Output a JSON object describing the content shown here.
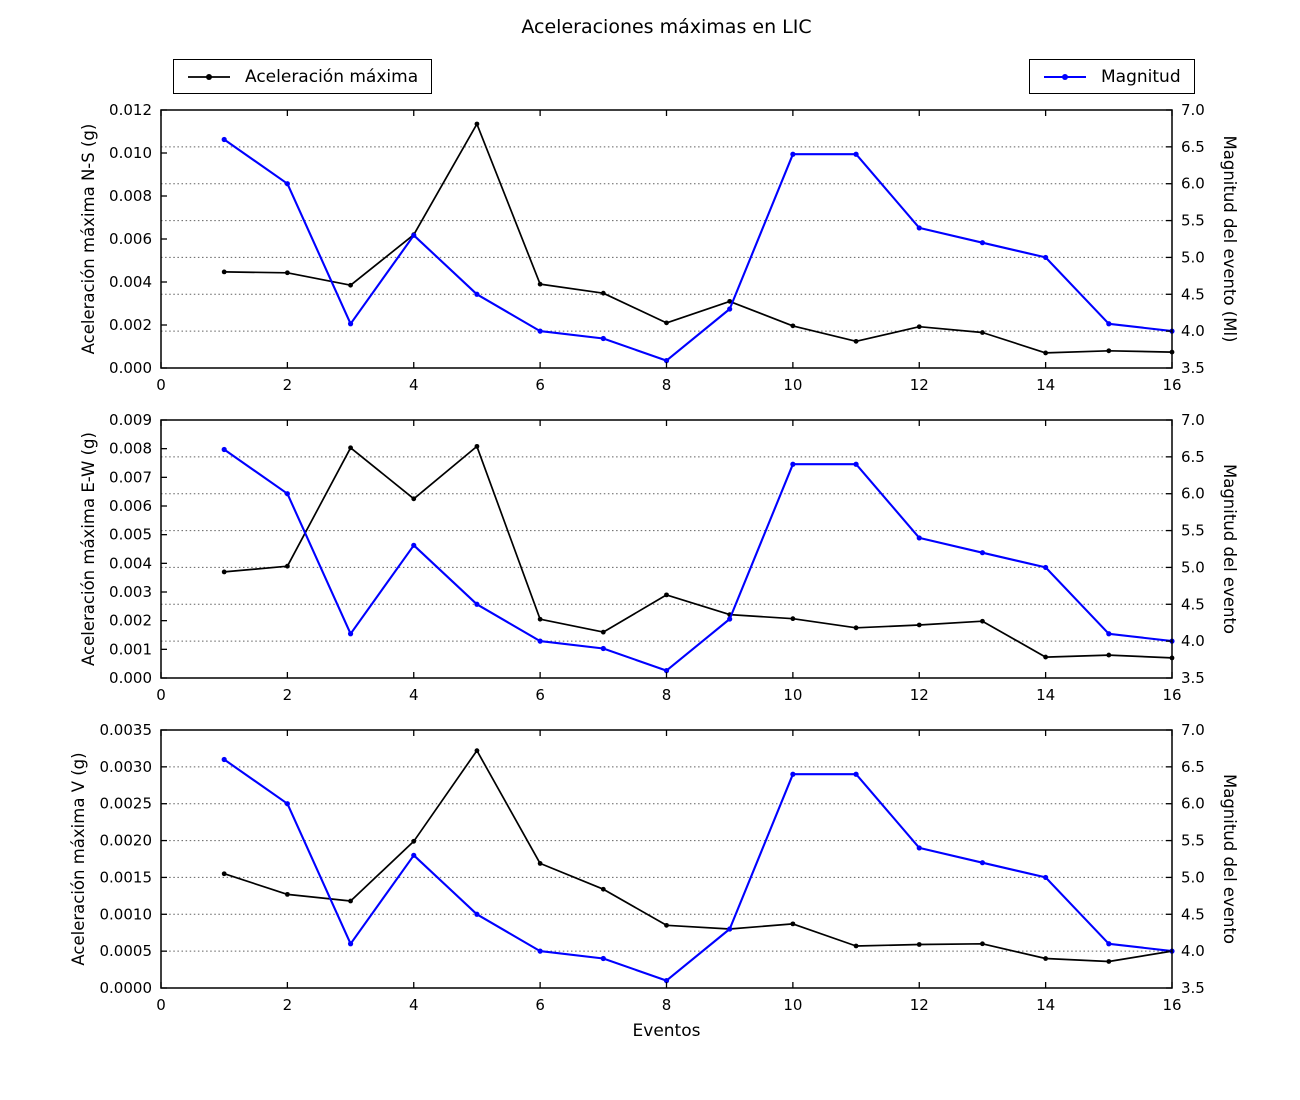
{
  "figure": {
    "title": "Aceleraciones máximas en LIC",
    "xlabel": "Eventos",
    "background_color": "#ffffff",
    "legends": [
      {
        "label": "Aceleración máxima",
        "color": "#000000"
      },
      {
        "label": "Magnitud",
        "color": "#0000ff"
      }
    ]
  },
  "chart_data": [
    {
      "type": "line",
      "subplot": "N-S",
      "x": [
        1,
        2,
        3,
        4,
        5,
        6,
        7,
        8,
        9,
        10,
        11,
        12,
        13,
        14,
        15,
        16
      ],
      "xlim": [
        0,
        16
      ],
      "xticks": [
        0,
        2,
        4,
        6,
        8,
        10,
        12,
        14,
        16
      ],
      "ylabel_left": "Aceleración máxima N-S (g)",
      "ylim_left": [
        0.0,
        0.012
      ],
      "yticks_left": [
        0.0,
        0.002,
        0.004,
        0.006,
        0.008,
        0.01,
        0.012
      ],
      "ytick_decimals_left": 3,
      "ylabel_right": "Magnitud del evento (Ml)",
      "ylim_right": [
        3.5,
        7.0
      ],
      "yticks_right": [
        3.5,
        4.0,
        4.5,
        5.0,
        5.5,
        6.0,
        6.5,
        7.0
      ],
      "grid_right_values": [
        4.0,
        4.5,
        5.0,
        5.5,
        6.0,
        6.5
      ],
      "grid_style": "dotted",
      "legend_position": "figure-top",
      "series": [
        {
          "name": "Aceleración máxima",
          "axis": "left",
          "color": "#000000",
          "values": [
            0.00447,
            0.00443,
            0.00385,
            0.0062,
            0.01135,
            0.0039,
            0.00348,
            0.0021,
            0.0031,
            0.00196,
            0.00124,
            0.00192,
            0.00165,
            0.0007,
            0.0008,
            0.00074
          ]
        },
        {
          "name": "Magnitud",
          "axis": "right",
          "color": "#0000ff",
          "values": [
            6.6,
            6.0,
            4.1,
            5.3,
            4.5,
            4.0,
            3.9,
            3.6,
            4.3,
            6.4,
            6.4,
            5.4,
            5.2,
            5.0,
            4.1,
            4.0
          ]
        }
      ]
    },
    {
      "type": "line",
      "subplot": "E-W",
      "x": [
        1,
        2,
        3,
        4,
        5,
        6,
        7,
        8,
        9,
        10,
        11,
        12,
        13,
        14,
        15,
        16
      ],
      "xlim": [
        0,
        16
      ],
      "xticks": [
        0,
        2,
        4,
        6,
        8,
        10,
        12,
        14,
        16
      ],
      "ylabel_left": "Aceleración máxima E-W (g)",
      "ylim_left": [
        0.0,
        0.009
      ],
      "yticks_left": [
        0.0,
        0.001,
        0.002,
        0.003,
        0.004,
        0.005,
        0.006,
        0.007,
        0.008,
        0.009
      ],
      "ytick_decimals_left": 3,
      "ylabel_right": "Magnitud del evento",
      "ylim_right": [
        3.5,
        7.0
      ],
      "yticks_right": [
        3.5,
        4.0,
        4.5,
        5.0,
        5.5,
        6.0,
        6.5,
        7.0
      ],
      "grid_right_values": [
        4.0,
        4.5,
        5.0,
        5.5,
        6.0,
        6.5
      ],
      "grid_style": "dotted",
      "series": [
        {
          "name": "Aceleración máxima",
          "axis": "left",
          "color": "#000000",
          "values": [
            0.0037,
            0.0039,
            0.00803,
            0.00625,
            0.00808,
            0.00205,
            0.0016,
            0.0029,
            0.00221,
            0.00207,
            0.00175,
            0.00185,
            0.00198,
            0.00073,
            0.0008,
            0.0007
          ]
        },
        {
          "name": "Magnitud",
          "axis": "right",
          "color": "#0000ff",
          "values": [
            6.6,
            6.0,
            4.1,
            5.3,
            4.5,
            4.0,
            3.9,
            3.6,
            4.3,
            6.4,
            6.4,
            5.4,
            5.2,
            5.0,
            4.1,
            4.0
          ]
        }
      ]
    },
    {
      "type": "line",
      "subplot": "V",
      "x": [
        1,
        2,
        3,
        4,
        5,
        6,
        7,
        8,
        9,
        10,
        11,
        12,
        13,
        14,
        15,
        16
      ],
      "xlim": [
        0,
        16
      ],
      "xticks": [
        0,
        2,
        4,
        6,
        8,
        10,
        12,
        14,
        16
      ],
      "ylabel_left": "Aceleración máxima V (g)",
      "ylim_left": [
        0.0,
        0.0035
      ],
      "yticks_left": [
        0.0,
        0.0005,
        0.001,
        0.0015,
        0.002,
        0.0025,
        0.003,
        0.0035
      ],
      "ytick_decimals_left": 4,
      "ylabel_right": "Magnitud del evento",
      "ylim_right": [
        3.5,
        7.0
      ],
      "yticks_right": [
        3.5,
        4.0,
        4.5,
        5.0,
        5.5,
        6.0,
        6.5,
        7.0
      ],
      "grid_right_values": [
        4.0,
        4.5,
        5.0,
        5.5,
        6.0,
        6.5
      ],
      "grid_style": "dotted",
      "series": [
        {
          "name": "Aceleración máxima",
          "axis": "left",
          "color": "#000000",
          "values": [
            0.00155,
            0.00127,
            0.00118,
            0.00199,
            0.00322,
            0.00169,
            0.00134,
            0.00085,
            0.0008,
            0.00087,
            0.00057,
            0.00059,
            0.0006,
            0.0004,
            0.00036,
            0.0005
          ]
        },
        {
          "name": "Magnitud",
          "axis": "right",
          "color": "#0000ff",
          "values": [
            6.6,
            6.0,
            4.1,
            5.3,
            4.5,
            4.0,
            3.9,
            3.6,
            4.3,
            6.4,
            6.4,
            5.4,
            5.2,
            5.0,
            4.1,
            4.0
          ]
        }
      ]
    }
  ]
}
